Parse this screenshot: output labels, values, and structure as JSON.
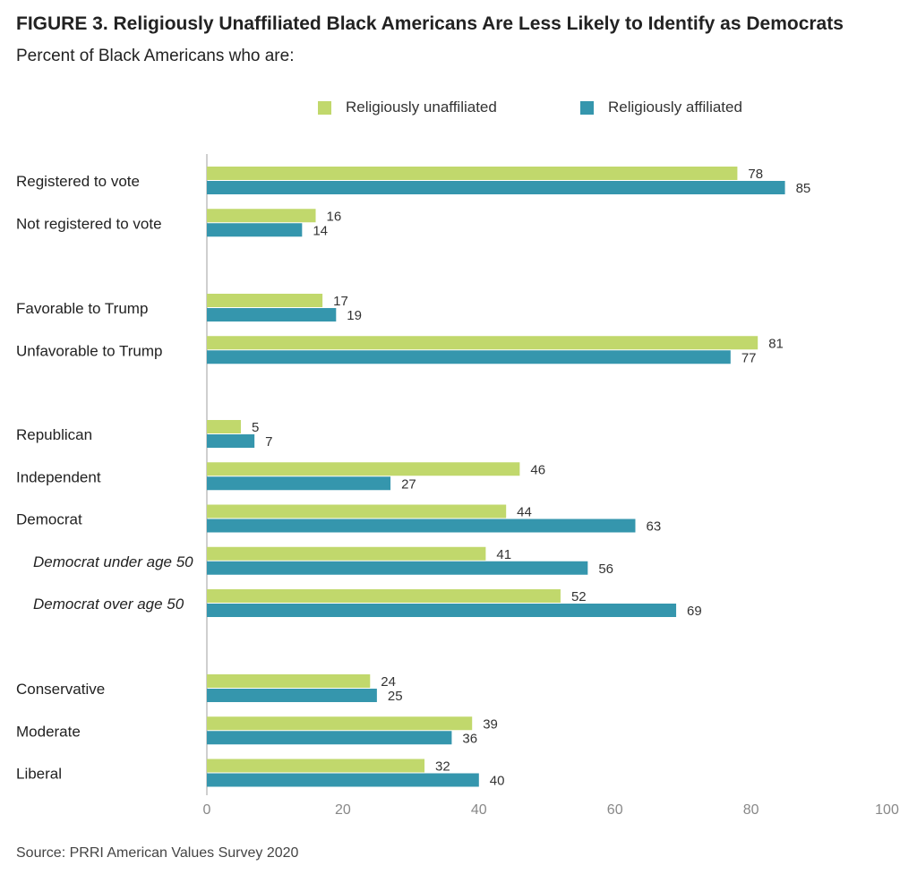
{
  "header": {
    "title": "FIGURE 3. Religiously Unaffiliated Black Americans Are Less Likely to Identify as Democrats",
    "subtitle": "Percent of Black Americans who are:"
  },
  "legend": {
    "items": [
      {
        "label": "Religiously unaffiliated",
        "color": "#c1d86c"
      },
      {
        "label": "Religiously affiliated",
        "color": "#3596ad"
      }
    ]
  },
  "footer": {
    "source": "Source: PRRI American Values Survey 2020"
  },
  "chart_data": {
    "type": "bar",
    "orientation": "horizontal",
    "categories": [
      "Registered to vote",
      "Not registered to vote",
      "Favorable to Trump",
      "Unfavorable to Trump",
      "Republican",
      "Independent",
      "Democrat",
      "Democrat under age 50",
      "Democrat over age 50",
      "Conservative",
      "Moderate",
      "Liberal"
    ],
    "italic_categories": [
      "Democrat under age 50",
      "Democrat over age 50"
    ],
    "groups": [
      [
        "Registered to vote",
        "Not registered to vote"
      ],
      [
        "Favorable to Trump",
        "Unfavorable to Trump"
      ],
      [
        "Republican",
        "Independent",
        "Democrat",
        "Democrat under age 50",
        "Democrat over age 50"
      ],
      [
        "Conservative",
        "Moderate",
        "Liberal"
      ]
    ],
    "series": [
      {
        "name": "Religiously unaffiliated",
        "color": "#c1d86c",
        "values": [
          78,
          16,
          17,
          81,
          5,
          46,
          44,
          41,
          52,
          24,
          39,
          32
        ]
      },
      {
        "name": "Religiously affiliated",
        "color": "#3596ad",
        "values": [
          85,
          14,
          19,
          77,
          7,
          27,
          63,
          56,
          69,
          25,
          36,
          40
        ]
      }
    ],
    "xlim": [
      0,
      100
    ],
    "xticks": [
      0,
      20,
      40,
      60,
      80,
      100
    ],
    "grid": false,
    "legend_position": "top-center"
  }
}
